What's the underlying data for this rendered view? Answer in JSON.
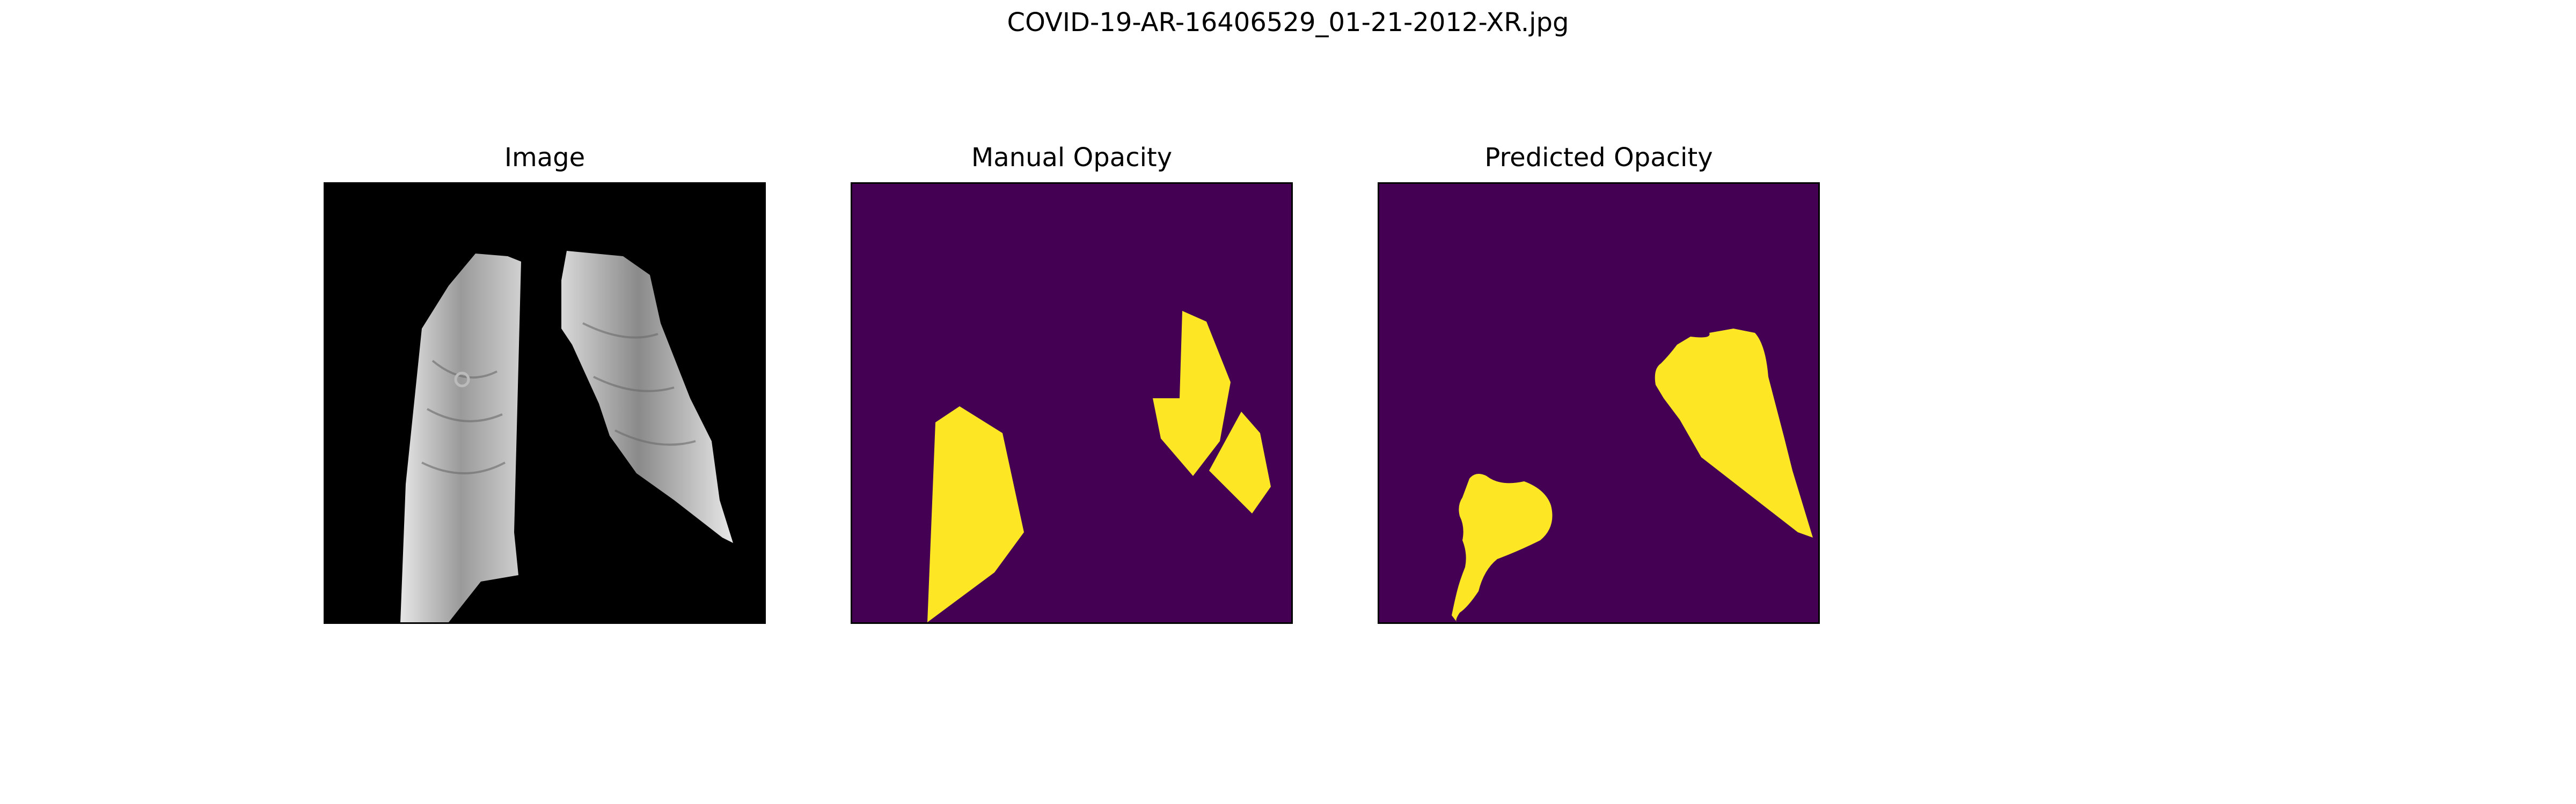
{
  "figure": {
    "title": "COVID-19-AR-16406529_01-21-2012-XR.jpg"
  },
  "panels": [
    {
      "title": "Image"
    },
    {
      "title": "Manual Opacity"
    },
    {
      "title": "Predicted Opacity"
    }
  ],
  "colors": {
    "background": "#ffffff",
    "mask_background": "#440154",
    "mask_foreground": "#fde725",
    "xray_background": "#000000"
  }
}
